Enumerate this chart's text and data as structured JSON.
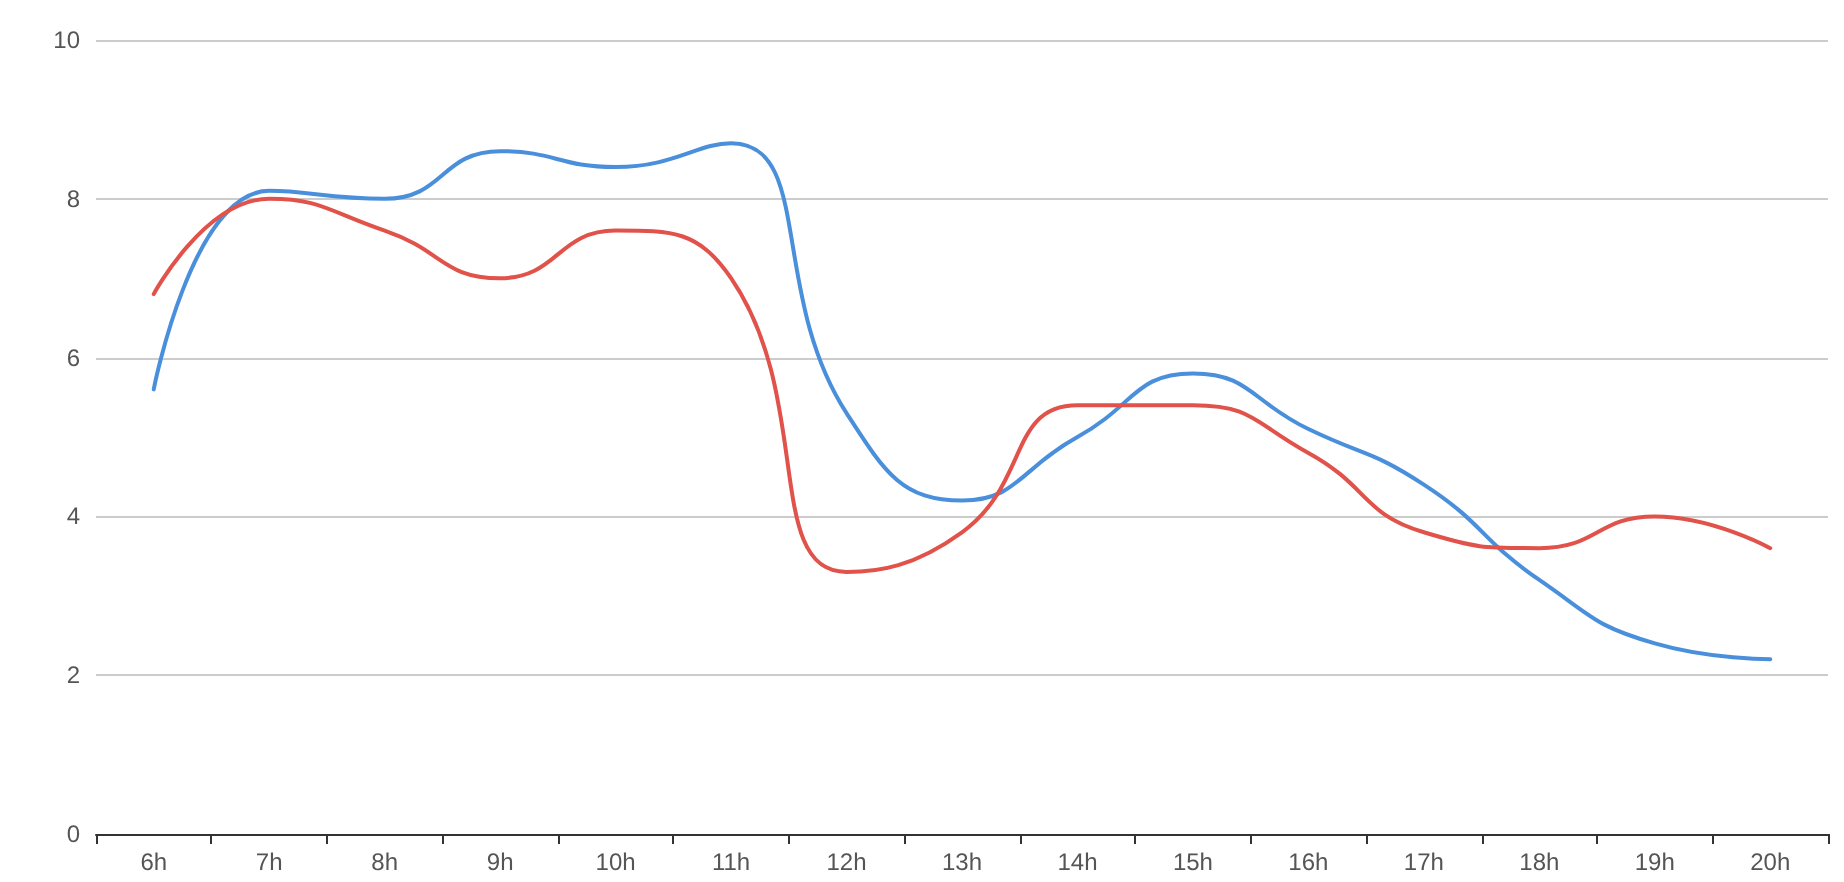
{
  "chart_data": {
    "type": "line",
    "categories": [
      "6h",
      "7h",
      "8h",
      "9h",
      "10h",
      "11h",
      "12h",
      "13h",
      "14h",
      "15h",
      "16h",
      "17h",
      "18h",
      "19h",
      "20h"
    ],
    "series": [
      {
        "color": "#4a8fdb",
        "values": [
          5.6,
          8.1,
          8.0,
          8.6,
          8.4,
          8.7,
          5.3,
          4.2,
          5.0,
          5.8,
          5.1,
          4.4,
          3.2,
          2.4,
          2.2
        ]
      },
      {
        "color": "#e0524a",
        "values": [
          6.8,
          8.0,
          7.6,
          7.0,
          7.6,
          7.0,
          3.3,
          3.8,
          5.4,
          5.4,
          4.8,
          3.8,
          3.6,
          4.0,
          3.6
        ]
      }
    ],
    "ylim": [
      0,
      10
    ],
    "yticks": [
      0,
      2,
      4,
      6,
      8,
      10
    ],
    "grid": "y",
    "marker": "none",
    "line_style": "solid"
  }
}
